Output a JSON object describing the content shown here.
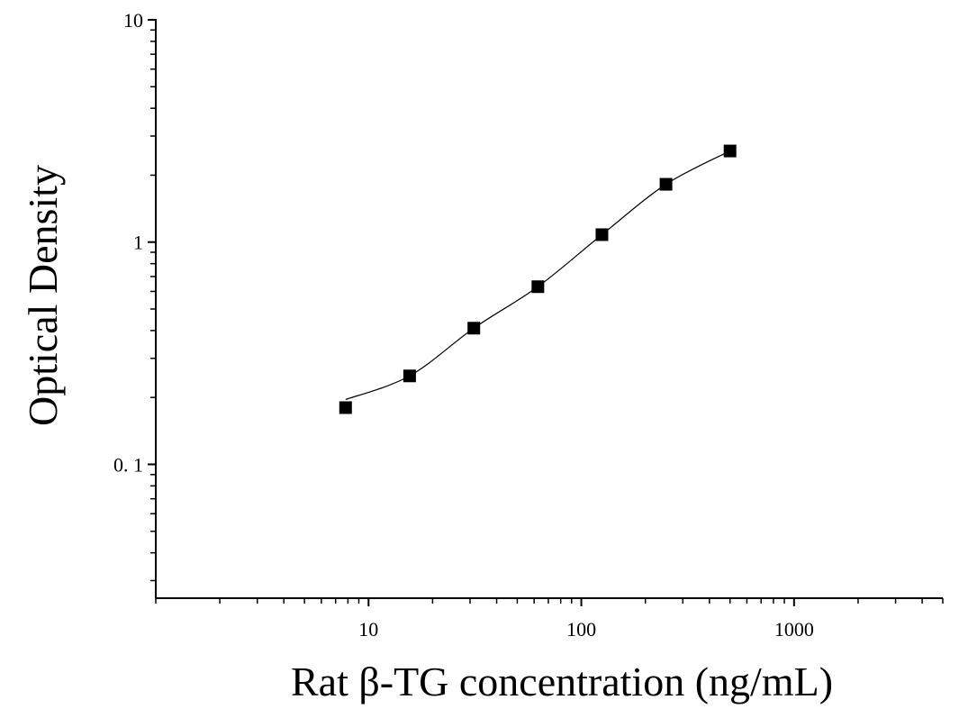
{
  "chart_data": {
    "type": "scatter",
    "title": "",
    "xlabel": "Rat β-TG concentration (ng/mL)",
    "ylabel": "Optical Density",
    "xscale": "log",
    "yscale": "log",
    "xlim": [
      1.0,
      5000
    ],
    "ylim": [
      0.025,
      10
    ],
    "xticks": [
      {
        "value": 10,
        "label": "10"
      },
      {
        "value": 100,
        "label": "100"
      },
      {
        "value": 1000,
        "label": "1000"
      }
    ],
    "yticks": [
      {
        "value": 0.1,
        "label": "0. 1"
      },
      {
        "value": 1,
        "label": "1"
      },
      {
        "value": 10,
        "label": "10"
      }
    ],
    "grid": false,
    "legend": "none",
    "marker": "square",
    "marker_color": "#000000",
    "line_color": "#000000",
    "series": [
      {
        "x": [
          7.8,
          15.6,
          31.25,
          62.5,
          125,
          250,
          500
        ],
        "y": [
          0.18,
          0.25,
          0.41,
          0.63,
          1.08,
          1.82,
          2.57
        ]
      }
    ],
    "fit_curve": "smooth"
  }
}
